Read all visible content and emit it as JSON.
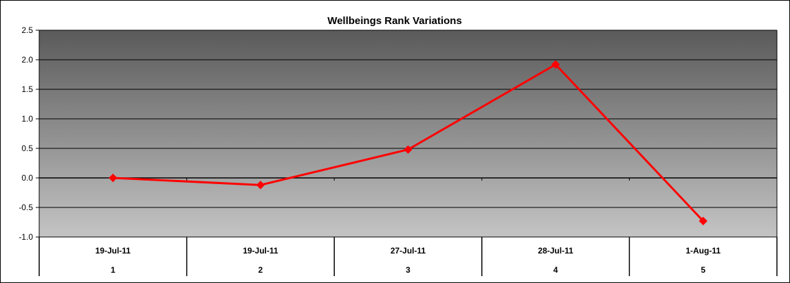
{
  "chart_data": {
    "type": "line",
    "title": "Wellbeings Rank Variations",
    "xlabel": "",
    "ylabel": "",
    "ylim": [
      -1.0,
      2.5
    ],
    "ytick_step": 0.5,
    "grid": true,
    "legend": "none",
    "categories": [
      {
        "date": "19-Jul-11",
        "index": "1"
      },
      {
        "date": "19-Jul-11",
        "index": "2"
      },
      {
        "date": "27-Jul-11",
        "index": "3"
      },
      {
        "date": "28-Jul-11",
        "index": "4"
      },
      {
        "date": "1-Aug-11",
        "index": "5"
      }
    ],
    "series": [
      {
        "values": [
          0.0,
          -0.12,
          0.48,
          1.92,
          -0.73
        ],
        "color": "#ff0000"
      }
    ],
    "colors": {
      "plot_top": "#5a5a5a",
      "plot_bottom": "#c4c4c4",
      "line": "#ff0000",
      "marker": "#ff0000"
    }
  }
}
